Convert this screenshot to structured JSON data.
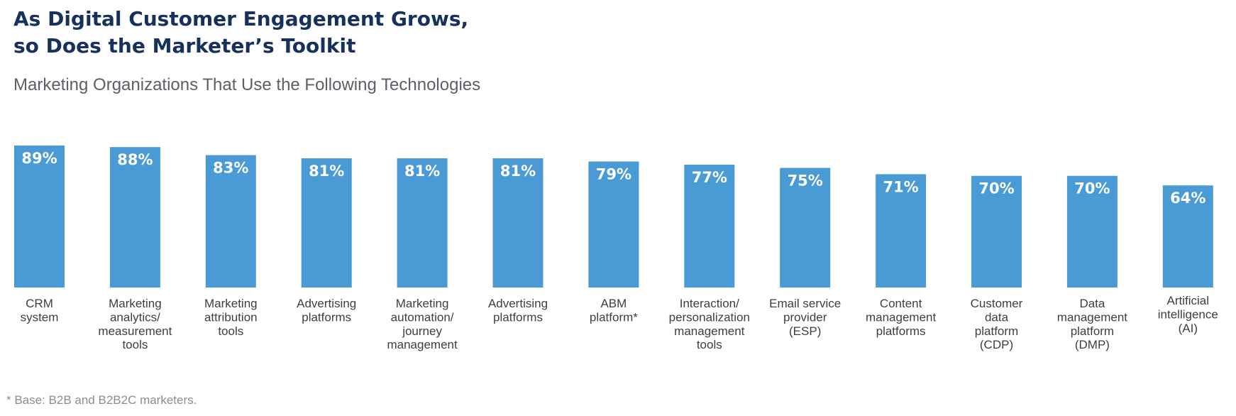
{
  "header": {
    "title_line1": "As Digital Customer Engagement Grows,",
    "title_line2": "so Does the Marketer’s Toolkit",
    "subtitle": "Marketing Organizations That Use the Following Technologies"
  },
  "footnote": "* Base: B2B and B2B2C marketers.",
  "colors": {
    "bar": "#4a9ad6",
    "title": "#16325c",
    "value_label": "#ffffff"
  },
  "chart_data": {
    "type": "bar",
    "categories": [
      [
        "CRM",
        "system"
      ],
      [
        "Marketing",
        "analytics/",
        "measurement",
        "tools"
      ],
      [
        "Marketing",
        "attribution",
        "tools"
      ],
      [
        "Advertising",
        "platforms"
      ],
      [
        "Marketing",
        "automation/",
        "journey",
        "management"
      ],
      [
        "Advertising",
        "platforms"
      ],
      [
        "ABM",
        "platform*"
      ],
      [
        "Interaction/",
        "personalization",
        "management",
        "tools"
      ],
      [
        "Email service",
        "provider",
        "(ESP)"
      ],
      [
        "Content",
        "management",
        "platforms"
      ],
      [
        "Customer",
        "data",
        "platform",
        "(CDP)"
      ],
      [
        "Data",
        "management",
        "platform",
        "(DMP)"
      ],
      [
        "Artificial",
        "intelligence",
        "(AI)"
      ]
    ],
    "values": [
      89,
      88,
      83,
      81,
      81,
      81,
      79,
      77,
      75,
      71,
      70,
      70,
      64
    ],
    "value_suffix": "%",
    "ylim": [
      0,
      89
    ],
    "grid": false,
    "legend": "none",
    "data_labels": "inside-top"
  }
}
